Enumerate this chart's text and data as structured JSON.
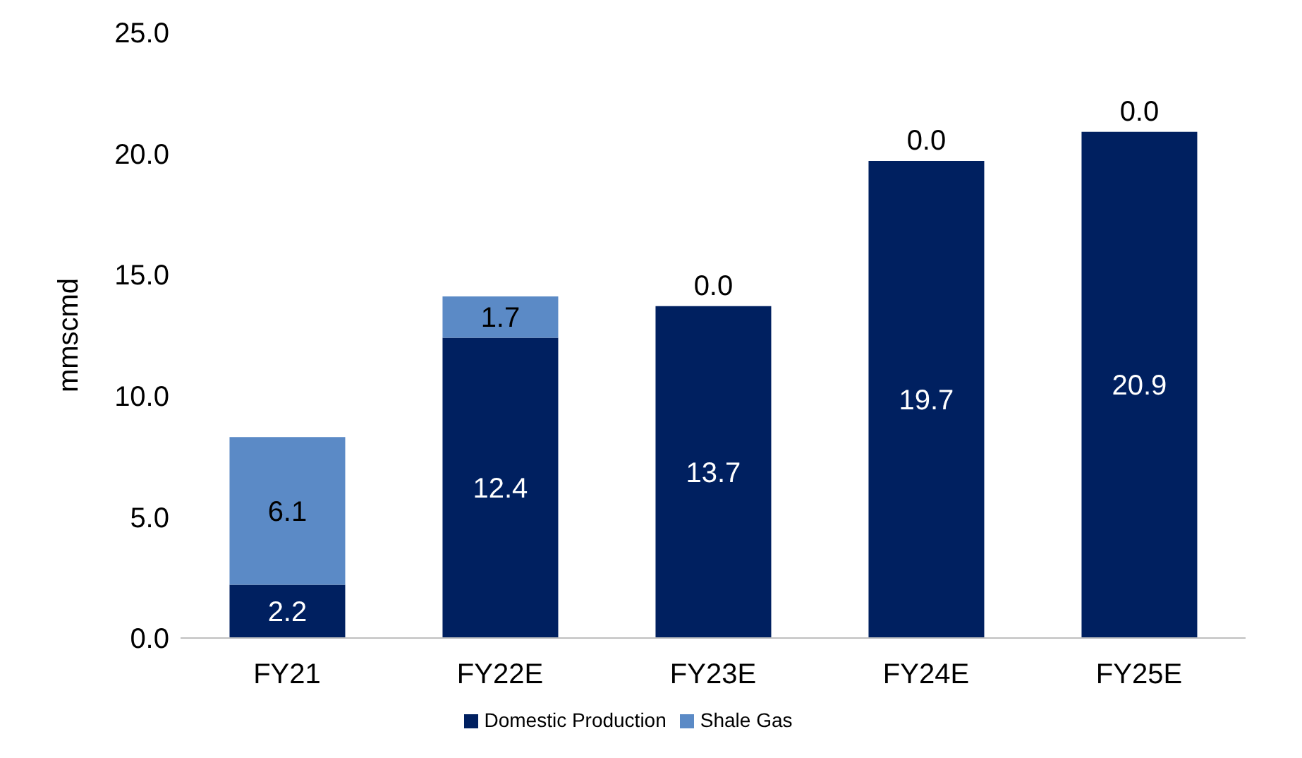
{
  "chart_data": {
    "type": "bar",
    "stacked": true,
    "ylabel": "mmscmd",
    "categories": [
      "FY21",
      "FY22E",
      "FY23E",
      "FY24E",
      "FY25E"
    ],
    "series": [
      {
        "name": "Domestic Production",
        "color": "#002060",
        "values": [
          2.2,
          12.4,
          13.7,
          19.7,
          20.9
        ],
        "value_labels": [
          "2.2",
          "12.4",
          "13.7",
          "19.7",
          "20.9"
        ]
      },
      {
        "name": "Shale Gas",
        "color": "#5b8ac6",
        "values": [
          6.1,
          1.7,
          0.0,
          0.0,
          0.0
        ],
        "value_labels": [
          "6.1",
          "1.7",
          "0.0",
          "0.0",
          "0.0"
        ]
      }
    ],
    "ylim": [
      0,
      25
    ],
    "yticks": [
      {
        "value": 0,
        "label": "0.0"
      },
      {
        "value": 5,
        "label": "5.0"
      },
      {
        "value": 10,
        "label": "10.0"
      },
      {
        "value": 15,
        "label": "15.0"
      },
      {
        "value": 20,
        "label": "20.0"
      },
      {
        "value": 25,
        "label": "25.0"
      }
    ],
    "grid": false,
    "legend": "bottom"
  }
}
